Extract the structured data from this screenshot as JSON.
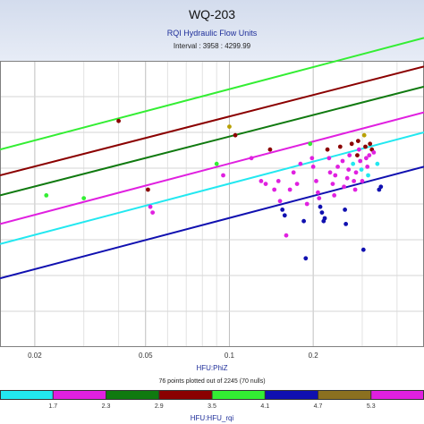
{
  "header": {
    "title": "WQ-203",
    "subtitle": "RQI Hydraulic Flow Units",
    "interval": "Interval : 3958 : 4299.99"
  },
  "chart_data": {
    "type": "scatter",
    "xlabel": "HFU:PhiZ",
    "xscale": "log",
    "xlim": [
      0.015,
      0.5
    ],
    "xticks": [
      0.02,
      0.05,
      0.1,
      0.2
    ],
    "ylim_rel": [
      0,
      1
    ],
    "grid": true,
    "note": "76 points plotted out of 2245 (70 nulls)",
    "lines": [
      {
        "color": "#1010b0",
        "x": [
          0.015,
          0.5
        ],
        "y": [
          0.24,
          0.63
        ]
      },
      {
        "color": "#22e8f0",
        "x": [
          0.015,
          0.5
        ],
        "y": [
          0.36,
          0.75
        ]
      },
      {
        "color": "#e020e0",
        "x": [
          0.015,
          0.5
        ],
        "y": [
          0.43,
          0.82
        ]
      },
      {
        "color": "#107a10",
        "x": [
          0.015,
          0.5
        ],
        "y": [
          0.53,
          0.91
        ]
      },
      {
        "color": "#8b0000",
        "x": [
          0.015,
          0.5
        ],
        "y": [
          0.6,
          0.98
        ]
      },
      {
        "color": "#33ee33",
        "x": [
          0.015,
          0.5
        ],
        "y": [
          0.69,
          1.08
        ]
      }
    ],
    "points": [
      {
        "x": 0.022,
        "y": 0.53,
        "color": "#33ee33"
      },
      {
        "x": 0.03,
        "y": 0.52,
        "color": "#33ee33"
      },
      {
        "x": 0.04,
        "y": 0.79,
        "color": "#8b0000"
      },
      {
        "x": 0.051,
        "y": 0.55,
        "color": "#8b0000"
      },
      {
        "x": 0.052,
        "y": 0.49,
        "color": "#e020e0"
      },
      {
        "x": 0.053,
        "y": 0.47,
        "color": "#e020e0"
      },
      {
        "x": 0.09,
        "y": 0.64,
        "color": "#33ee33"
      },
      {
        "x": 0.095,
        "y": 0.6,
        "color": "#e020e0"
      },
      {
        "x": 0.1,
        "y": 0.77,
        "color": "#b8a000"
      },
      {
        "x": 0.105,
        "y": 0.74,
        "color": "#8b0000"
      },
      {
        "x": 0.12,
        "y": 0.66,
        "color": "#e020e0"
      },
      {
        "x": 0.13,
        "y": 0.58,
        "color": "#e020e0"
      },
      {
        "x": 0.135,
        "y": 0.57,
        "color": "#e020e0"
      },
      {
        "x": 0.14,
        "y": 0.69,
        "color": "#8b0000"
      },
      {
        "x": 0.145,
        "y": 0.55,
        "color": "#e020e0"
      },
      {
        "x": 0.15,
        "y": 0.58,
        "color": "#e020e0"
      },
      {
        "x": 0.152,
        "y": 0.51,
        "color": "#e020e0"
      },
      {
        "x": 0.155,
        "y": 0.48,
        "color": "#1010b0"
      },
      {
        "x": 0.158,
        "y": 0.46,
        "color": "#1010b0"
      },
      {
        "x": 0.16,
        "y": 0.39,
        "color": "#e020e0"
      },
      {
        "x": 0.165,
        "y": 0.55,
        "color": "#e020e0"
      },
      {
        "x": 0.17,
        "y": 0.61,
        "color": "#e020e0"
      },
      {
        "x": 0.175,
        "y": 0.57,
        "color": "#e020e0"
      },
      {
        "x": 0.18,
        "y": 0.64,
        "color": "#e020e0"
      },
      {
        "x": 0.185,
        "y": 0.44,
        "color": "#1010b0"
      },
      {
        "x": 0.188,
        "y": 0.31,
        "color": "#1010b0"
      },
      {
        "x": 0.19,
        "y": 0.5,
        "color": "#e020e0"
      },
      {
        "x": 0.195,
        "y": 0.71,
        "color": "#33ee33"
      },
      {
        "x": 0.198,
        "y": 0.66,
        "color": "#e020e0"
      },
      {
        "x": 0.2,
        "y": 0.63,
        "color": "#e020e0"
      },
      {
        "x": 0.205,
        "y": 0.58,
        "color": "#e020e0"
      },
      {
        "x": 0.208,
        "y": 0.54,
        "color": "#e020e0"
      },
      {
        "x": 0.21,
        "y": 0.52,
        "color": "#e020e0"
      },
      {
        "x": 0.212,
        "y": 0.49,
        "color": "#1010b0"
      },
      {
        "x": 0.215,
        "y": 0.47,
        "color": "#1010b0"
      },
      {
        "x": 0.218,
        "y": 0.44,
        "color": "#1010b0"
      },
      {
        "x": 0.22,
        "y": 0.45,
        "color": "#1010b0"
      },
      {
        "x": 0.225,
        "y": 0.69,
        "color": "#8b0000"
      },
      {
        "x": 0.228,
        "y": 0.66,
        "color": "#e020e0"
      },
      {
        "x": 0.23,
        "y": 0.61,
        "color": "#e020e0"
      },
      {
        "x": 0.235,
        "y": 0.57,
        "color": "#e020e0"
      },
      {
        "x": 0.238,
        "y": 0.53,
        "color": "#e020e0"
      },
      {
        "x": 0.24,
        "y": 0.6,
        "color": "#e020e0"
      },
      {
        "x": 0.245,
        "y": 0.63,
        "color": "#e020e0"
      },
      {
        "x": 0.25,
        "y": 0.7,
        "color": "#8b0000"
      },
      {
        "x": 0.255,
        "y": 0.65,
        "color": "#e020e0"
      },
      {
        "x": 0.258,
        "y": 0.56,
        "color": "#e020e0"
      },
      {
        "x": 0.26,
        "y": 0.48,
        "color": "#1010b0"
      },
      {
        "x": 0.262,
        "y": 0.43,
        "color": "#1010b0"
      },
      {
        "x": 0.265,
        "y": 0.59,
        "color": "#e020e0"
      },
      {
        "x": 0.268,
        "y": 0.62,
        "color": "#e020e0"
      },
      {
        "x": 0.27,
        "y": 0.67,
        "color": "#e020e0"
      },
      {
        "x": 0.275,
        "y": 0.71,
        "color": "#8b0000"
      },
      {
        "x": 0.278,
        "y": 0.64,
        "color": "#22e8f0"
      },
      {
        "x": 0.28,
        "y": 0.58,
        "color": "#e020e0"
      },
      {
        "x": 0.283,
        "y": 0.55,
        "color": "#e020e0"
      },
      {
        "x": 0.285,
        "y": 0.61,
        "color": "#e020e0"
      },
      {
        "x": 0.288,
        "y": 0.67,
        "color": "#8b0000"
      },
      {
        "x": 0.29,
        "y": 0.72,
        "color": "#8b0000"
      },
      {
        "x": 0.292,
        "y": 0.69,
        "color": "#e020e0"
      },
      {
        "x": 0.295,
        "y": 0.65,
        "color": "#e020e0"
      },
      {
        "x": 0.298,
        "y": 0.62,
        "color": "#22e8f0"
      },
      {
        "x": 0.3,
        "y": 0.58,
        "color": "#e020e0"
      },
      {
        "x": 0.303,
        "y": 0.34,
        "color": "#1010b0"
      },
      {
        "x": 0.305,
        "y": 0.74,
        "color": "#b8a000"
      },
      {
        "x": 0.308,
        "y": 0.7,
        "color": "#8b0000"
      },
      {
        "x": 0.31,
        "y": 0.66,
        "color": "#e020e0"
      },
      {
        "x": 0.313,
        "y": 0.63,
        "color": "#e020e0"
      },
      {
        "x": 0.315,
        "y": 0.6,
        "color": "#22e8f0"
      },
      {
        "x": 0.318,
        "y": 0.67,
        "color": "#e020e0"
      },
      {
        "x": 0.32,
        "y": 0.71,
        "color": "#8b0000"
      },
      {
        "x": 0.325,
        "y": 0.69,
        "color": "#8b0000"
      },
      {
        "x": 0.33,
        "y": 0.68,
        "color": "#e020e0"
      },
      {
        "x": 0.34,
        "y": 0.64,
        "color": "#22e8f0"
      },
      {
        "x": 0.345,
        "y": 0.55,
        "color": "#1010b0"
      },
      {
        "x": 0.35,
        "y": 0.56,
        "color": "#1010b0"
      }
    ],
    "colorbar": {
      "label": "HFU:HFU_rqi",
      "colors": [
        "#22e8f0",
        "#e020e0",
        "#107a10",
        "#8b0000",
        "#33ee33",
        "#1010b0",
        "#8b7020",
        "#e020e0"
      ],
      "ticks": [
        "1.7",
        "2.3",
        "2.9",
        "3.5",
        "4.1",
        "4.7",
        "5.3"
      ]
    }
  }
}
